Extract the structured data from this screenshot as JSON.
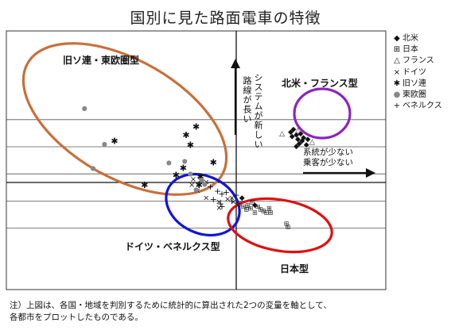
{
  "title": "国別に見た路面電車の特徴",
  "note": {
    "line1": "注）上図は、各国・地域を判別するために統計的に算出された2つの変量を軸として、",
    "line2": "各都市をプロットしたものである。"
  },
  "legend": [
    {
      "key": "na",
      "marker": "◆",
      "label": "北米"
    },
    {
      "key": "jp",
      "marker": "⊞",
      "label": "日本"
    },
    {
      "key": "fr",
      "marker": "△",
      "label": "フランス"
    },
    {
      "key": "de",
      "marker": "×",
      "label": "ドイツ"
    },
    {
      "key": "su",
      "marker": "✱",
      "label": "旧ソ連"
    },
    {
      "key": "ee",
      "marker": "●",
      "label": "東欧圏"
    },
    {
      "key": "bn",
      "marker": "+",
      "label": "ベネルクス"
    }
  ],
  "annotations": {
    "vertical_arrow_col1": "路線が長い",
    "vertical_arrow_col2": "システムが新しい",
    "horizontal_arrow_line1": "系統が少ない",
    "horizontal_arrow_line2": "乗客が少ない"
  },
  "groups": {
    "soviet": "旧ソ連・東欧圏型",
    "na_fr": "北米・フランス型",
    "de_bn": "ドイツ・ベネルクス型",
    "jp": "日本型"
  },
  "colors": {
    "soviet_ellipse": "#c8703a",
    "na_fr_ellipse": "#8e24c0",
    "de_bn_ellipse": "#1414d8",
    "jp_ellipse": "#e01010",
    "gridline": "#555555"
  },
  "chart_data": {
    "type": "scatter",
    "xlim": [
      -10,
      10
    ],
    "ylim": [
      -7,
      7
    ],
    "grid": true,
    "xgrid_at": [
      0
    ],
    "ygrid_at": [
      4.4,
      2.5,
      0.6,
      -1.3,
      -3.2
    ],
    "series": [
      {
        "name": "北米",
        "marker": "◆",
        "points": [
          [
            3.8,
            3.5
          ],
          [
            3.9,
            3.2
          ],
          [
            4.0,
            3.7
          ],
          [
            4.2,
            3.3
          ],
          [
            4.3,
            3.0
          ],
          [
            4.5,
            3.4
          ],
          [
            4.6,
            2.9
          ],
          [
            4.4,
            2.7
          ],
          [
            4.7,
            3.1
          ],
          [
            4.9,
            2.6
          ],
          [
            5.0,
            3.0
          ],
          [
            4.2,
            2.5
          ],
          [
            0.4,
            -1.1
          ],
          [
            1.3,
            -1.6
          ]
        ]
      },
      {
        "name": "日本",
        "marker": "⊞",
        "points": [
          [
            0.2,
            -1.5
          ],
          [
            0.5,
            -1.7
          ],
          [
            0.8,
            -1.6
          ],
          [
            1.0,
            -1.8
          ],
          [
            1.3,
            -2.1
          ],
          [
            1.5,
            -1.7
          ],
          [
            1.7,
            -1.9
          ],
          [
            1.9,
            -2.0
          ],
          [
            2.1,
            -2.1
          ],
          [
            2.3,
            -1.8
          ],
          [
            2.4,
            -2.1
          ],
          [
            1.1,
            -1.4
          ],
          [
            0.7,
            -1.9
          ],
          [
            3.5,
            -2.9
          ],
          [
            3.6,
            -3.1
          ]
        ]
      },
      {
        "name": "フランス",
        "marker": "△",
        "points": [
          [
            3.2,
            3.4
          ],
          [
            4.3,
            3.6
          ],
          [
            5.3,
            2.8
          ]
        ]
      },
      {
        "name": "ドイツ",
        "marker": "×",
        "points": [
          [
            -3.0,
            0.2
          ],
          [
            -3.1,
            -0.2
          ],
          [
            -2.5,
            0.1
          ],
          [
            -2.1,
            0.0
          ],
          [
            -2.7,
            -0.6
          ],
          [
            -2.1,
            -1.1
          ],
          [
            -1.2,
            -1.4
          ],
          [
            -1.2,
            -1.8
          ],
          [
            -0.3,
            -1.1
          ],
          [
            -0.2,
            -1.4
          ],
          [
            0.1,
            -1.6
          ],
          [
            -0.6,
            -1.2
          ]
        ]
      },
      {
        "name": "旧ソ連",
        "marker": "✱",
        "points": [
          [
            -8.5,
            2.9
          ],
          [
            -2.8,
            3.9
          ],
          [
            -3.5,
            3.3
          ],
          [
            -3.2,
            2.6
          ],
          [
            -1.6,
            1.4
          ],
          [
            -3.7,
            1.0
          ],
          [
            -4.2,
            0.5
          ],
          [
            -6.4,
            -0.2
          ],
          [
            -2.6,
            -0.2
          ],
          [
            -2.5,
            0.4
          ]
        ]
      },
      {
        "name": "東欧圏",
        "marker": "●",
        "points": [
          [
            -10.6,
            5.2
          ],
          [
            -9.2,
            2.7
          ],
          [
            -10.0,
            1.0
          ],
          [
            -3.6,
            1.5
          ],
          [
            -4.7,
            1.4
          ],
          [
            -3.2,
            0.6
          ],
          [
            -2.4,
            0.2
          ],
          [
            -2.2,
            -0.1
          ],
          [
            -2.8,
            -0.5
          ]
        ]
      },
      {
        "name": "ベネルクス",
        "marker": "+",
        "points": [
          [
            -1.8,
            -0.3
          ],
          [
            -1.3,
            -0.6
          ],
          [
            -1.0,
            -0.8
          ],
          [
            -0.7,
            -0.7
          ],
          [
            -0.3,
            -1.3
          ],
          [
            0.0,
            -0.9
          ],
          [
            -1.6,
            -1.2
          ],
          [
            -1.1,
            -1.5
          ],
          [
            -1.0,
            -1.7
          ]
        ]
      }
    ]
  }
}
